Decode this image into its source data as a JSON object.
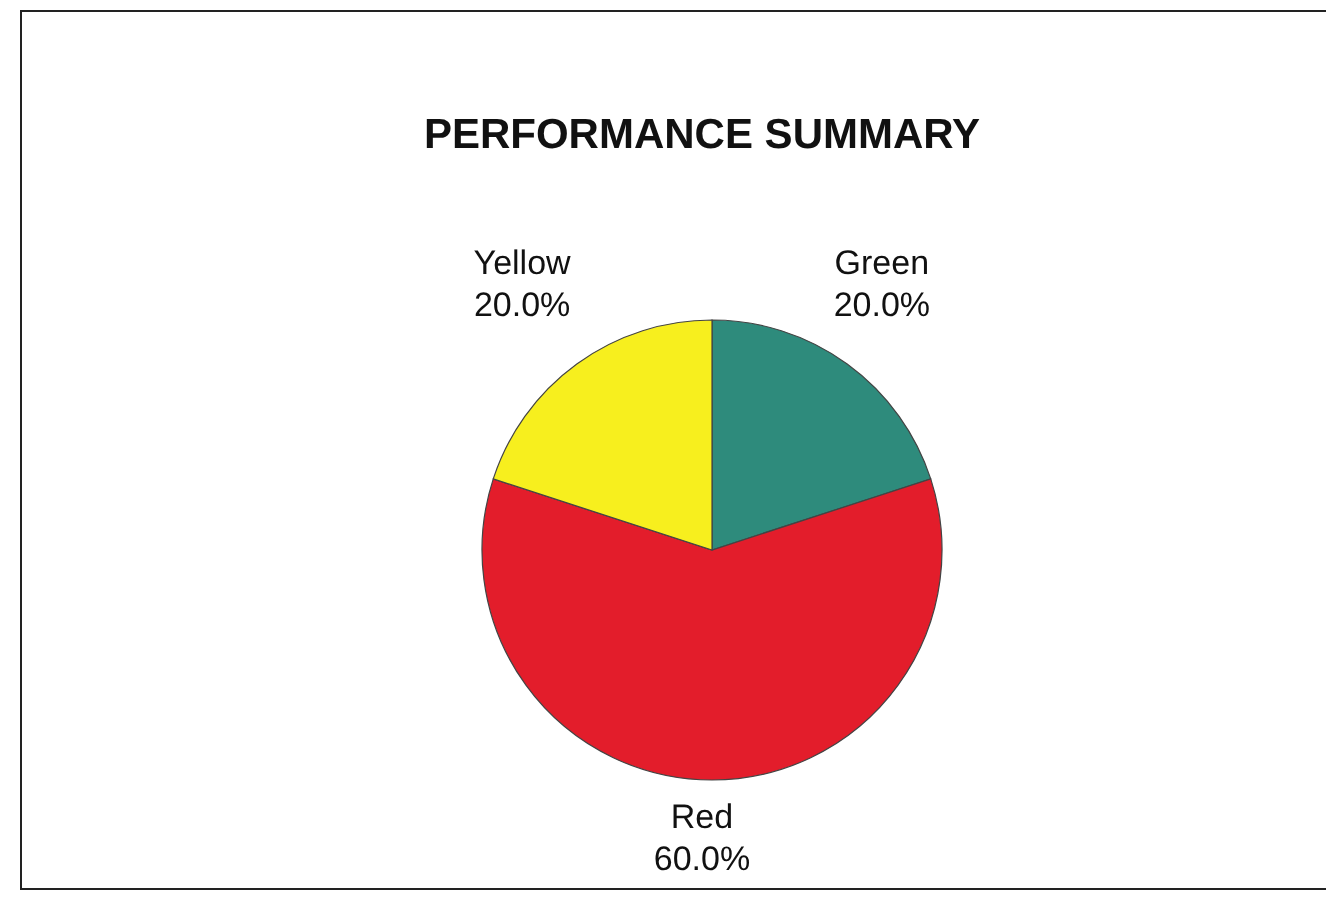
{
  "chart_data": {
    "type": "pie",
    "title": "PERFORMANCE SUMMARY",
    "categories": [
      "Green",
      "Red",
      "Yellow"
    ],
    "values": [
      20,
      60,
      20
    ],
    "colors": [
      "#2e8b7c",
      "#e31d2b",
      "#f7ef1e"
    ],
    "value_labels": [
      "20.0%",
      "60.0%",
      "20.0%"
    ]
  }
}
